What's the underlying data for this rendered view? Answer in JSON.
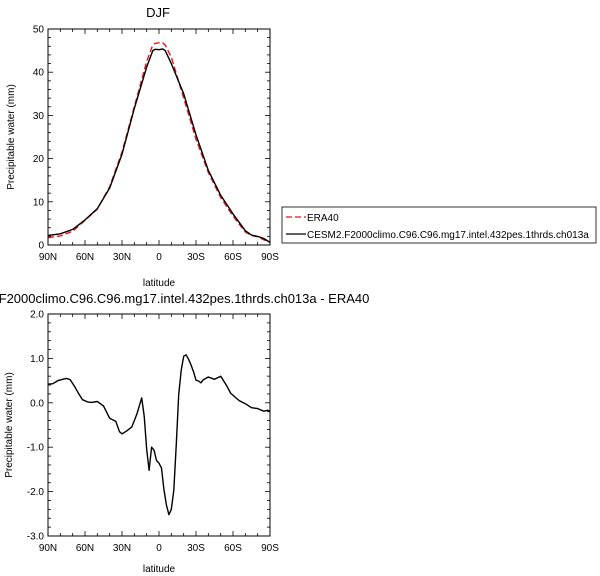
{
  "chart_data": [
    {
      "type": "line",
      "title": "DJF",
      "xlabel": "latitude",
      "ylabel": "Precipitable water (mm)",
      "xlim": [
        90,
        -90
      ],
      "ylim": [
        0,
        50
      ],
      "xticks": [
        90,
        60,
        30,
        0,
        -30,
        -60,
        -90
      ],
      "xtick_labels": [
        "90N",
        "60N",
        "30N",
        "0",
        "30S",
        "60S",
        "90S"
      ],
      "yticks": [
        0,
        10,
        20,
        30,
        40,
        50
      ],
      "ytick_labels": [
        "0",
        "10",
        "20",
        "30",
        "40",
        "50"
      ],
      "legend_position": "right",
      "series": [
        {
          "name": "ERA40",
          "color": "#e8141c",
          "dash": "dashed",
          "x": [
            90,
            80,
            70,
            60,
            50,
            40,
            30,
            20,
            10,
            5,
            3,
            0,
            -3,
            -5,
            -10,
            -20,
            -30,
            -40,
            -50,
            -60,
            -70,
            -75,
            -80,
            -85,
            -90
          ],
          "y": [
            1.7,
            2.1,
            3.2,
            5.7,
            8.3,
            13.5,
            21.5,
            32.0,
            42.5,
            46.3,
            46.7,
            46.8,
            46.8,
            46.3,
            43.5,
            34.0,
            24.5,
            16.8,
            11.0,
            6.7,
            3.0,
            2.2,
            1.9,
            1.2,
            0.7
          ]
        },
        {
          "name": "CESM2.F2000climo.C96.C96.mg17.intel.432pes.1thrds.ch013a",
          "color": "#000000",
          "dash": "solid",
          "x": [
            90,
            80,
            70,
            60,
            50,
            40,
            30,
            20,
            10,
            5,
            3,
            0,
            -3,
            -5,
            -10,
            -20,
            -30,
            -40,
            -50,
            -60,
            -70,
            -75,
            -80,
            -85,
            -90
          ],
          "y": [
            2.2,
            2.6,
            3.6,
            5.8,
            8.4,
            13.2,
            21.0,
            31.6,
            41.2,
            45.0,
            45.3,
            45.2,
            45.4,
            45.0,
            42.0,
            35.0,
            25.5,
            17.3,
            11.5,
            7.2,
            3.3,
            2.3,
            2.0,
            1.5,
            0.6
          ]
        }
      ]
    },
    {
      "type": "line",
      "title": "F2000climo.C96.C96.mg17.intel.432pes.1thrds.ch013a - ERA40",
      "xlabel": "latitude",
      "ylabel": "Precipitable water (mm)",
      "xlim": [
        90,
        -90
      ],
      "ylim": [
        -3.0,
        2.0
      ],
      "xticks": [
        90,
        60,
        30,
        0,
        -30,
        -60,
        -90
      ],
      "xtick_labels": [
        "90N",
        "60N",
        "30N",
        "0",
        "30S",
        "60S",
        "90S"
      ],
      "yticks": [
        2.0,
        1.0,
        0.0,
        -1.0,
        -2.0,
        -3.0
      ],
      "ytick_labels": [
        "2.0",
        "1.0",
        "0.0",
        "-1.0",
        "-2.0",
        "-3.0"
      ],
      "series": [
        {
          "color": "#000000",
          "dash": "solid",
          "x": [
            90,
            86,
            82,
            78,
            75,
            72,
            68,
            65,
            62,
            58,
            55,
            50,
            45,
            40,
            35,
            32,
            30,
            26,
            22,
            18,
            14,
            12,
            10,
            8,
            6,
            4,
            2,
            0,
            -2,
            -4,
            -6,
            -8,
            -10,
            -12,
            -14,
            -16,
            -18,
            -20,
            -22,
            -24,
            -26,
            -28,
            -30,
            -32,
            -34,
            -36,
            -40,
            -45,
            -50,
            -55,
            -58,
            -62,
            -65,
            -70,
            -75,
            -80,
            -85,
            -88,
            -90
          ],
          "y": [
            0.42,
            0.43,
            0.5,
            0.53,
            0.55,
            0.52,
            0.35,
            0.2,
            0.07,
            0.02,
            0.01,
            0.03,
            -0.07,
            -0.35,
            -0.42,
            -0.65,
            -0.7,
            -0.63,
            -0.54,
            -0.26,
            0.11,
            -0.3,
            -1.05,
            -1.52,
            -1.0,
            -1.07,
            -1.3,
            -1.36,
            -1.47,
            -1.95,
            -2.3,
            -2.52,
            -2.4,
            -1.97,
            -0.93,
            0.18,
            0.73,
            1.05,
            1.08,
            0.98,
            0.85,
            0.7,
            0.51,
            0.49,
            0.45,
            0.52,
            0.58,
            0.53,
            0.6,
            0.38,
            0.22,
            0.12,
            0.05,
            -0.02,
            -0.11,
            -0.13,
            -0.19,
            -0.17,
            -0.19
          ]
        }
      ]
    }
  ]
}
